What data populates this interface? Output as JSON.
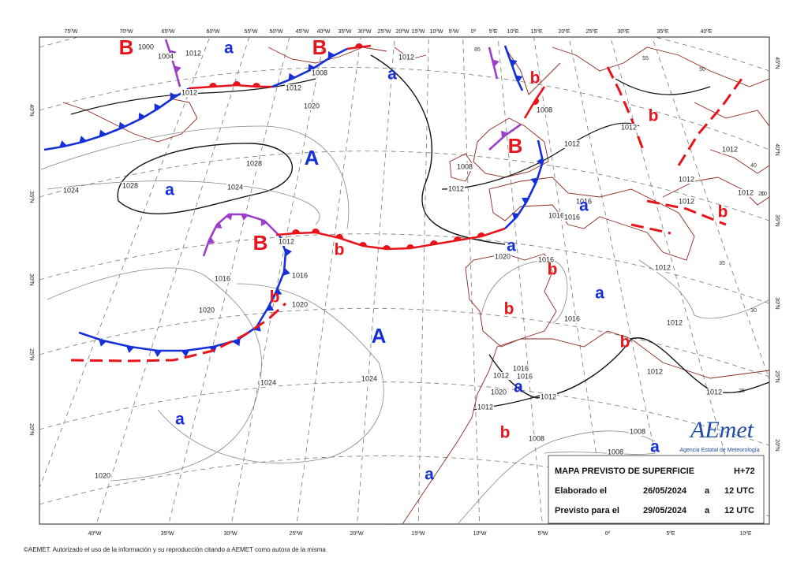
{
  "longitude_labels_top": [
    "75ºW",
    "70ºW",
    "65ºW",
    "60ºW",
    "55ºW",
    "50ºW",
    "45ºW",
    "40ºW",
    "35ºW",
    "30ºW",
    "25ºW",
    "20ºW",
    "15ºW",
    "10ºW",
    "5ºW",
    "0º",
    "5ºE",
    "10ºE",
    "15ºE",
    "20ºE",
    "25ºE",
    "30ºE",
    "35ºE",
    "40ºE"
  ],
  "longitude_labels_bottom": [
    "40ºW",
    "35ºW",
    "30ºW",
    "25ºW",
    "20ºW",
    "15ºW",
    "10ºW",
    "5ºW",
    "0º",
    "5ºE",
    "10ºE"
  ],
  "latitude_labels_left": [
    "40ºN",
    "35ºN",
    "30ºN",
    "25ºN",
    "20ºN"
  ],
  "latitude_labels_right": [
    "45ºN",
    "40ºN",
    "35ºN",
    "30ºN",
    "25ºN",
    "20ºN"
  ],
  "grid_labels": [
    "85",
    "55",
    "50",
    "40",
    "35",
    "30",
    "25",
    "20",
    "10"
  ],
  "pressure_centers": [
    {
      "label": "B",
      "color": "#e8141b"
    },
    {
      "label": "a",
      "color": "#1530d8"
    },
    {
      "label": "B",
      "color": "#e8141b"
    },
    {
      "label": "a",
      "color": "#1530d8"
    },
    {
      "label": "A",
      "color": "#1530d8"
    },
    {
      "label": "a",
      "color": "#1530d8"
    },
    {
      "label": "B",
      "color": "#e8141b"
    },
    {
      "label": "B",
      "color": "#e8141b"
    },
    {
      "label": "b",
      "color": "#e8141b"
    },
    {
      "label": "a",
      "color": "#1530d8"
    },
    {
      "label": "a",
      "color": "#1530d8"
    },
    {
      "label": "b",
      "color": "#e8141b"
    },
    {
      "label": "b",
      "color": "#e8141b"
    },
    {
      "label": "a",
      "color": "#1530d8"
    },
    {
      "label": "b",
      "color": "#e8141b"
    },
    {
      "label": "A",
      "color": "#1530d8"
    },
    {
      "label": "b",
      "color": "#e8141b"
    },
    {
      "label": "a",
      "color": "#1530d8"
    },
    {
      "label": "b",
      "color": "#e8141b"
    },
    {
      "label": "a",
      "color": "#1530d8"
    },
    {
      "label": "a",
      "color": "#1530d8"
    },
    {
      "label": "a",
      "color": "#1530d8"
    },
    {
      "label": "b",
      "color": "#e8141b"
    },
    {
      "label": "b",
      "color": "#e8141b"
    },
    {
      "label": "b",
      "color": "#e8141b"
    }
  ],
  "isobar_labels": [
    "1000",
    "1004",
    "1012",
    "1012",
    "1012",
    "1008",
    "1020",
    "1028",
    "1028",
    "1024",
    "1024",
    "1012",
    "1012",
    "1008",
    "1012",
    "1012",
    "1016",
    "1016",
    "1016",
    "1008",
    "1012",
    "1016",
    "1016",
    "1020",
    "1020",
    "1020",
    "1016",
    "1016",
    "1012",
    "1012",
    "1012",
    "1012",
    "1024",
    "1024",
    "1012",
    "1020",
    "1016",
    "1016",
    "1012",
    "1012",
    "1008",
    "1008",
    "1008",
    "1020",
    "1012",
    "1012",
    "1012",
    "1012"
  ],
  "info_box": {
    "title": "MAPA PREVISTO DE SUPERFICIE",
    "forecast_hour": "H+72",
    "issued_label": "Elaborado el",
    "issued_date": "26/05/2024",
    "issued_sep": "a",
    "issued_time": "12 UTC",
    "valid_label": "Previsto para el",
    "valid_date": "29/05/2024",
    "valid_sep": "a",
    "valid_time": "12 UTC"
  },
  "logo": {
    "name": "AEmet",
    "subtitle": "Agencia Estatal de Meteorología"
  },
  "copyright": "©AEMET. Autorizado el uso de la información y su reproducción citando a AEMET como autora de la misma"
}
